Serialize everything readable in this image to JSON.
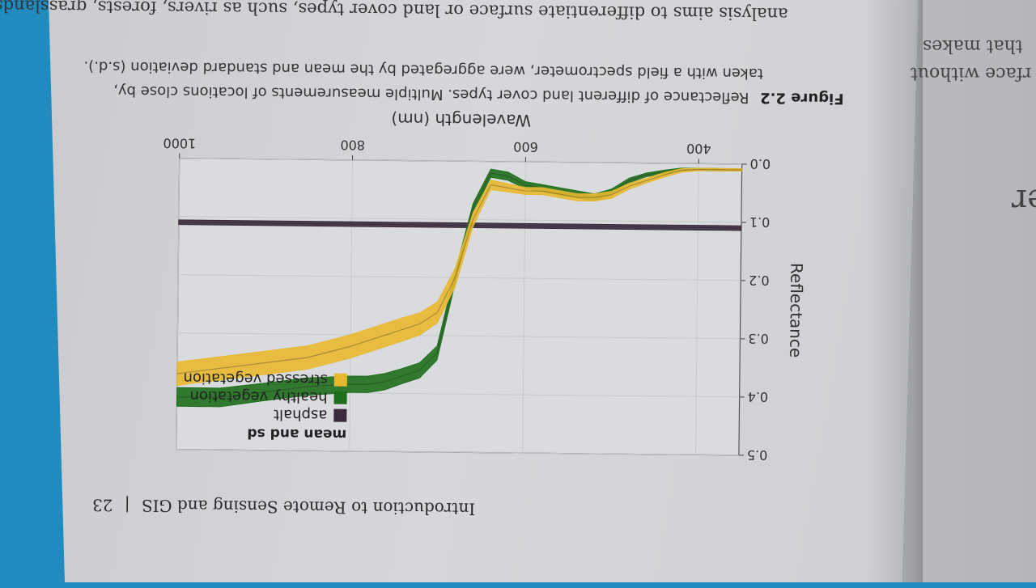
{
  "header": {
    "running_title": "Introduction to Remote Sensing and GIS",
    "page_number": "23",
    "separator": "|"
  },
  "caption": {
    "label": "Figure 2.2",
    "text_line1": "Reflectance of different land cover types. Multiple measurements of locations close by,",
    "text_line2": "taken with a field spectrometer, were aggregated by the mean and standard deviation (s.d.)."
  },
  "body_text": {
    "line1": "analysis aims to differentiate surface or land cover types, such as rivers, forests, grasslands"
  },
  "right_page": {
    "fragments": [
      "rface without",
      "that makes",
      "er"
    ]
  },
  "colors": {
    "asphalt": "#3a2a3c",
    "healthy": "#1e6e1c",
    "stressed": "#e8b830",
    "page": "#d6d7da",
    "desk": "#1f8bbf"
  },
  "chart_data": {
    "type": "line",
    "title": "",
    "xlabel": "Wavelength (nm)",
    "ylabel": "Reflectance",
    "xlim": [
      350,
      1000
    ],
    "ylim": [
      0,
      0.5
    ],
    "x_ticks": [
      400,
      600,
      800,
      1000
    ],
    "y_ticks": [
      0.0,
      0.1,
      0.2,
      0.3,
      0.4,
      0.5
    ],
    "x_tick_labels": [
      "400",
      "600",
      "800",
      "1000"
    ],
    "y_tick_labels": [
      "0.0",
      "0.1",
      "0.2",
      "0.3",
      "0.4",
      "0.5"
    ],
    "grid": true,
    "legend": {
      "title": "mean and sd",
      "position": "top-right"
    },
    "x": [
      350,
      380,
      400,
      420,
      440,
      460,
      480,
      500,
      520,
      540,
      560,
      580,
      600,
      620,
      640,
      660,
      680,
      700,
      720,
      740,
      760,
      780,
      800,
      850,
      900,
      950,
      1000
    ],
    "series": [
      {
        "name": "asphalt",
        "color": "#3a2a3c",
        "mean": [
          0.11,
          0.11,
          0.11,
          0.11,
          0.11,
          0.11,
          0.11,
          0.11,
          0.11,
          0.11,
          0.11,
          0.11,
          0.11,
          0.11,
          0.11,
          0.11,
          0.11,
          0.11,
          0.11,
          0.11,
          0.11,
          0.11,
          0.11,
          0.11,
          0.11,
          0.11,
          0.11
        ],
        "sd": [
          0.004,
          0.004,
          0.004,
          0.004,
          0.004,
          0.004,
          0.004,
          0.004,
          0.004,
          0.004,
          0.004,
          0.004,
          0.004,
          0.004,
          0.004,
          0.004,
          0.004,
          0.004,
          0.004,
          0.004,
          0.004,
          0.004,
          0.004,
          0.004,
          0.004,
          0.004,
          0.004
        ]
      },
      {
        "name": "healthy vegetation",
        "color": "#1e6e1c",
        "mean": [
          0.01,
          0.01,
          0.01,
          0.01,
          0.015,
          0.02,
          0.03,
          0.05,
          0.06,
          0.055,
          0.05,
          0.045,
          0.04,
          0.025,
          0.02,
          0.08,
          0.2,
          0.33,
          0.36,
          0.37,
          0.38,
          0.385,
          0.385,
          0.39,
          0.4,
          0.41,
          0.41
        ],
        "sd": [
          0.002,
          0.002,
          0.002,
          0.002,
          0.003,
          0.003,
          0.004,
          0.005,
          0.006,
          0.006,
          0.006,
          0.006,
          0.006,
          0.007,
          0.007,
          0.008,
          0.01,
          0.012,
          0.013,
          0.013,
          0.014,
          0.014,
          0.014,
          0.015,
          0.015,
          0.016,
          0.016
        ]
      },
      {
        "name": "stressed vegetation",
        "color": "#e8b830",
        "mean": [
          0.01,
          0.01,
          0.01,
          0.012,
          0.02,
          0.03,
          0.04,
          0.055,
          0.06,
          0.06,
          0.055,
          0.05,
          0.05,
          0.045,
          0.04,
          0.1,
          0.2,
          0.26,
          0.28,
          0.29,
          0.3,
          0.31,
          0.32,
          0.34,
          0.35,
          0.36,
          0.37
        ],
        "sd": [
          0.002,
          0.002,
          0.002,
          0.003,
          0.004,
          0.004,
          0.005,
          0.006,
          0.006,
          0.006,
          0.006,
          0.006,
          0.006,
          0.007,
          0.008,
          0.012,
          0.016,
          0.018,
          0.019,
          0.02,
          0.02,
          0.02,
          0.02,
          0.02,
          0.02,
          0.02,
          0.02
        ]
      }
    ]
  }
}
